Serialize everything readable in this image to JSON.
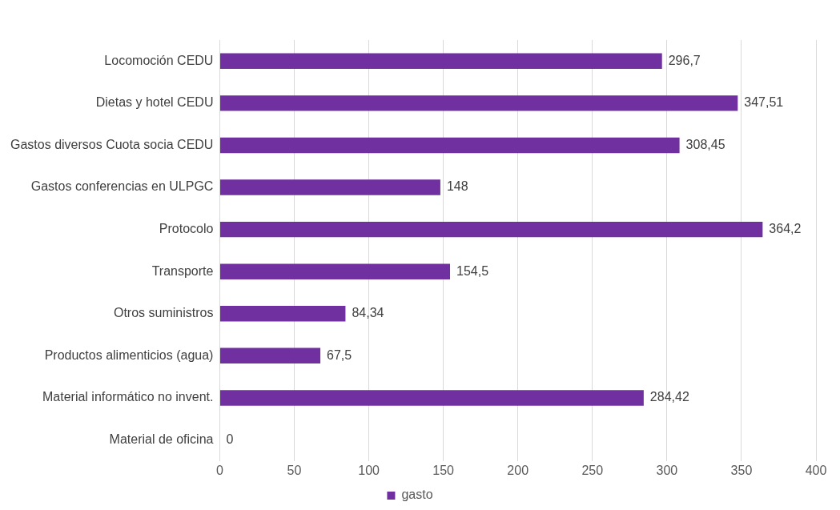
{
  "chart_data": {
    "type": "bar",
    "orientation": "horizontal",
    "categories": [
      "Locomoción CEDU",
      "Dietas y hotel CEDU",
      "Gastos diversos Cuota socia CEDU",
      "Gastos conferencias en ULPGC",
      "Protocolo",
      "Transporte",
      "Otros suministros",
      "Productos alimenticios (agua)",
      "Material informático no invent.",
      "Material de oficina"
    ],
    "series": [
      {
        "name": "gasto",
        "color": "#7030a0",
        "values": [
          296.7,
          347.51,
          308.45,
          148,
          364.2,
          154.5,
          84.34,
          67.5,
          284.42,
          0
        ],
        "value_labels": [
          "296,7",
          "347,51",
          "308,45",
          "148",
          "364,2",
          "154,5",
          "84,34",
          "67,5",
          "284,42",
          "0"
        ]
      }
    ],
    "xlim": [
      0,
      400
    ],
    "xticks": [
      0,
      50,
      100,
      150,
      200,
      250,
      300,
      350,
      400
    ],
    "grid": "x",
    "legend": "bottom"
  }
}
